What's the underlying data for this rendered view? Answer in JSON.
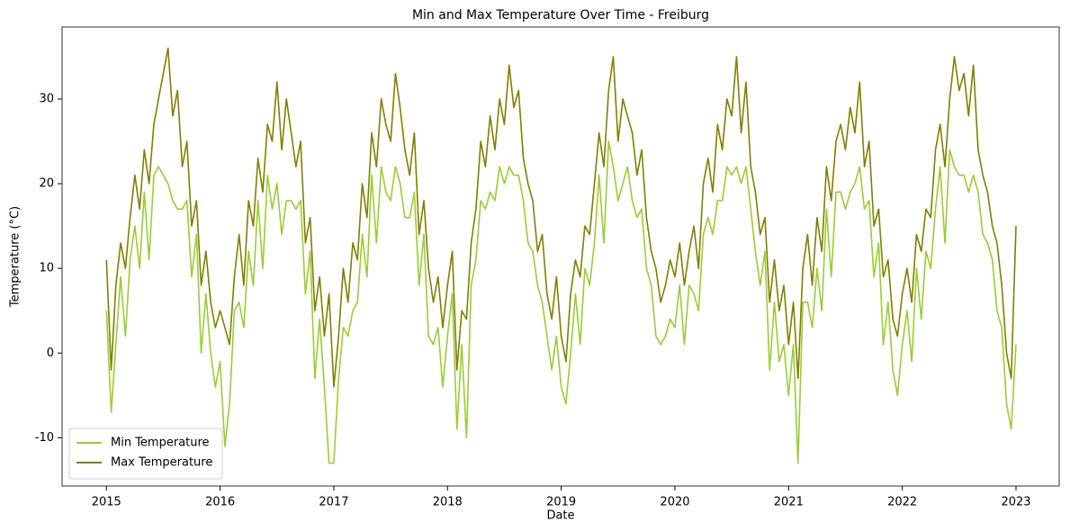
{
  "chart_data": {
    "type": "line",
    "title": "Min and Max Temperature Over Time - Freiburg",
    "xlabel": "Date",
    "ylabel": "Temperature (°C)",
    "x": [
      2015,
      2015.042,
      2015.083,
      2015.125,
      2015.167,
      2015.208,
      2015.25,
      2015.292,
      2015.333,
      2015.375,
      2015.417,
      2015.458,
      2015.5,
      2015.542,
      2015.583,
      2015.625,
      2015.667,
      2015.708,
      2015.75,
      2015.792,
      2015.833,
      2015.875,
      2015.917,
      2015.958,
      2016,
      2016.042,
      2016.083,
      2016.125,
      2016.167,
      2016.208,
      2016.25,
      2016.292,
      2016.333,
      2016.375,
      2016.417,
      2016.458,
      2016.5,
      2016.542,
      2016.583,
      2016.625,
      2016.667,
      2016.708,
      2016.75,
      2016.792,
      2016.833,
      2016.875,
      2016.917,
      2016.958,
      2017,
      2017.042,
      2017.083,
      2017.125,
      2017.167,
      2017.208,
      2017.25,
      2017.292,
      2017.333,
      2017.375,
      2017.417,
      2017.458,
      2017.5,
      2017.542,
      2017.583,
      2017.625,
      2017.667,
      2017.708,
      2017.75,
      2017.792,
      2017.833,
      2017.875,
      2017.917,
      2017.958,
      2018,
      2018.042,
      2018.083,
      2018.125,
      2018.167,
      2018.208,
      2018.25,
      2018.292,
      2018.333,
      2018.375,
      2018.417,
      2018.458,
      2018.5,
      2018.542,
      2018.583,
      2018.625,
      2018.667,
      2018.708,
      2018.75,
      2018.792,
      2018.833,
      2018.875,
      2018.917,
      2018.958,
      2019,
      2019.042,
      2019.083,
      2019.125,
      2019.167,
      2019.208,
      2019.25,
      2019.292,
      2019.333,
      2019.375,
      2019.417,
      2019.458,
      2019.5,
      2019.542,
      2019.583,
      2019.625,
      2019.667,
      2019.708,
      2019.75,
      2019.792,
      2019.833,
      2019.875,
      2019.917,
      2019.958,
      2020,
      2020.042,
      2020.083,
      2020.125,
      2020.167,
      2020.208,
      2020.25,
      2020.292,
      2020.333,
      2020.375,
      2020.417,
      2020.458,
      2020.5,
      2020.542,
      2020.583,
      2020.625,
      2020.667,
      2020.708,
      2020.75,
      2020.792,
      2020.833,
      2020.875,
      2020.917,
      2020.958,
      2021,
      2021.042,
      2021.083,
      2021.125,
      2021.167,
      2021.208,
      2021.25,
      2021.292,
      2021.333,
      2021.375,
      2021.417,
      2021.458,
      2021.5,
      2021.542,
      2021.583,
      2021.625,
      2021.667,
      2021.708,
      2021.75,
      2021.792,
      2021.833,
      2021.875,
      2021.917,
      2021.958,
      2022,
      2022.042,
      2022.083,
      2022.125,
      2022.167,
      2022.208,
      2022.25,
      2022.292,
      2022.333,
      2022.375,
      2022.417,
      2022.458,
      2022.5,
      2022.542,
      2022.583,
      2022.625,
      2022.667,
      2022.708,
      2022.75,
      2022.792,
      2022.833,
      2022.875,
      2022.917,
      2022.958,
      2023
    ],
    "series": [
      {
        "name": "Min Temperature",
        "color": "#9acd32",
        "values": [
          5,
          -7,
          1,
          9,
          2,
          11,
          15,
          10,
          19,
          11,
          21,
          22,
          21,
          20,
          18,
          17,
          17,
          18,
          9,
          14,
          0,
          7,
          0,
          -4,
          -1,
          -11,
          -6,
          5,
          6,
          3,
          12,
          8,
          18,
          10,
          21,
          17,
          20,
          14,
          18,
          18,
          17,
          18,
          7,
          12,
          -3,
          4,
          -4,
          -13,
          -13,
          -3,
          3,
          2,
          5,
          6,
          14,
          9,
          21,
          13,
          22,
          19,
          18,
          22,
          20,
          16,
          16,
          19,
          8,
          14,
          2,
          1,
          3,
          -4,
          2,
          7,
          -9,
          1,
          -10,
          8,
          11,
          18,
          17,
          19,
          18,
          22,
          20,
          22,
          21,
          21,
          18,
          13,
          12,
          8,
          6,
          2,
          -2,
          2,
          -4,
          -6,
          0,
          7,
          1,
          10,
          8,
          13,
          21,
          13,
          25,
          22,
          18,
          20,
          22,
          18,
          16,
          17,
          10,
          8,
          2,
          1,
          2,
          4,
          3,
          8,
          1,
          8,
          7,
          5,
          14,
          16,
          14,
          18,
          18,
          22,
          21,
          22,
          20,
          22,
          17,
          12,
          8,
          12,
          -2,
          6,
          -1,
          1,
          -5,
          1,
          -13,
          6,
          6,
          3,
          10,
          5,
          17,
          9,
          19,
          19,
          17,
          19,
          20,
          22,
          17,
          18,
          9,
          13,
          1,
          6,
          -2,
          -5,
          1,
          5,
          -1,
          10,
          4,
          12,
          10,
          17,
          22,
          13,
          24,
          22,
          21,
          21,
          19,
          21,
          19,
          14,
          13,
          11,
          5,
          3,
          -6,
          -9,
          1
        ]
      },
      {
        "name": "Max Temperature",
        "color": "#808000",
        "values": [
          11,
          -2,
          8,
          13,
          10,
          16,
          21,
          17,
          24,
          20,
          27,
          30,
          33,
          36,
          28,
          31,
          22,
          25,
          15,
          18,
          8,
          12,
          6,
          3,
          5,
          3,
          1,
          9,
          14,
          8,
          18,
          15,
          23,
          19,
          27,
          25,
          32,
          24,
          30,
          26,
          22,
          25,
          13,
          16,
          5,
          9,
          2,
          7,
          -4,
          2,
          10,
          6,
          13,
          11,
          20,
          16,
          26,
          22,
          30,
          27,
          25,
          33,
          29,
          24,
          21,
          26,
          14,
          18,
          10,
          6,
          9,
          3,
          8,
          12,
          -2,
          5,
          4,
          13,
          17,
          25,
          22,
          28,
          24,
          30,
          27,
          34,
          29,
          31,
          23,
          20,
          18,
          12,
          14,
          7,
          4,
          9,
          2,
          -1,
          7,
          11,
          9,
          15,
          14,
          20,
          26,
          22,
          31,
          35,
          25,
          30,
          28,
          26,
          21,
          24,
          16,
          12,
          10,
          6,
          8,
          11,
          9,
          13,
          8,
          12,
          15,
          10,
          20,
          23,
          19,
          27,
          24,
          30,
          28,
          35,
          26,
          32,
          22,
          19,
          14,
          16,
          6,
          11,
          5,
          8,
          1,
          6,
          -3,
          10,
          14,
          8,
          16,
          12,
          22,
          18,
          25,
          27,
          24,
          29,
          26,
          32,
          22,
          25,
          15,
          17,
          9,
          11,
          4,
          2,
          7,
          10,
          6,
          14,
          12,
          17,
          16,
          24,
          27,
          22,
          30,
          35,
          31,
          33,
          28,
          34,
          24,
          21,
          19,
          15,
          13,
          8,
          0,
          -3,
          15
        ]
      }
    ],
    "xlim": [
      2014.61,
      2023.38
    ],
    "xticks": [
      2015,
      2016,
      2017,
      2018,
      2019,
      2020,
      2021,
      2022,
      2023
    ],
    "ylim": [
      -15.7,
      38.5
    ],
    "yticks": [
      -10,
      0,
      10,
      20,
      30
    ],
    "legend": "lower left"
  }
}
